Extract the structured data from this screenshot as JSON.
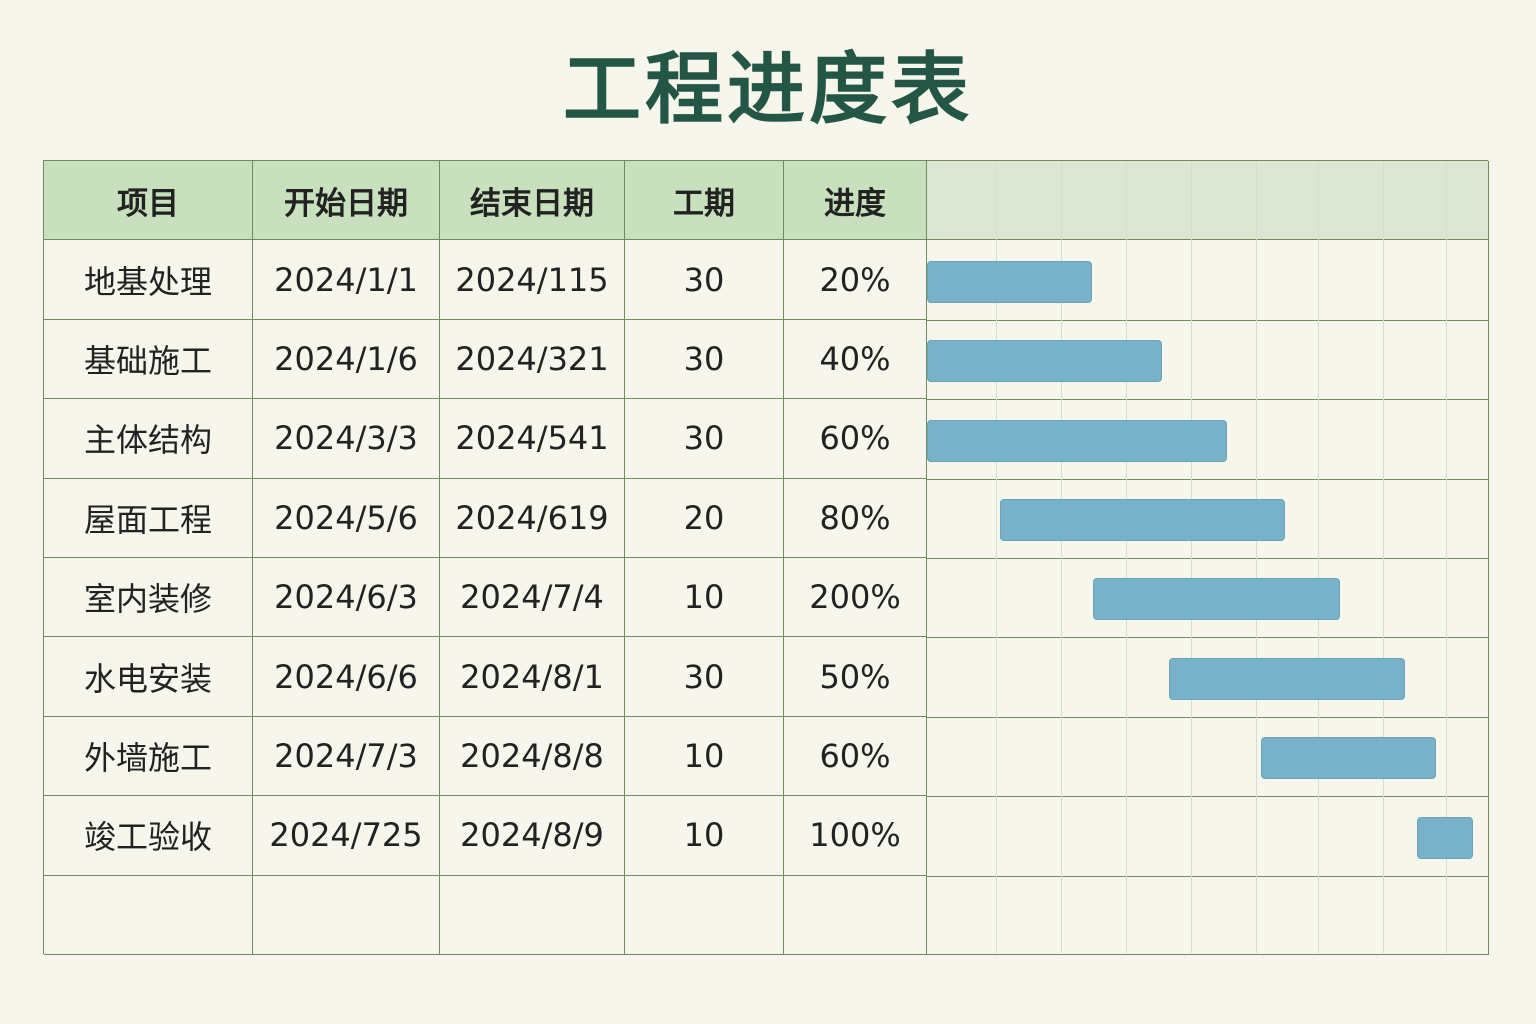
{
  "title": "工程进度表",
  "colors": {
    "title": "#245645",
    "header_bg": "#c8e0bd",
    "grid_line": "#6f8b5f",
    "bar": "#78b2c9",
    "page_bg": "#f7f6ec"
  },
  "table": {
    "headers": [
      "项目",
      "开始日期",
      "结束日期",
      "工期",
      "进度"
    ],
    "rows": [
      {
        "name": "地基处理",
        "start": "2024/1/1",
        "end": "2024/115",
        "duration": "30",
        "progress": "20%"
      },
      {
        "name": "基础施工",
        "start": "2024/1/6",
        "end": "2024/321",
        "duration": "30",
        "progress": "40%"
      },
      {
        "name": "主体结构",
        "start": "2024/3/3",
        "end": "2024/541",
        "duration": "30",
        "progress": "60%"
      },
      {
        "name": "屋面工程",
        "start": "2024/5/6",
        "end": "2024/619",
        "duration": "20",
        "progress": "80%"
      },
      {
        "name": "室内装修",
        "start": "2024/6/3",
        "end": "2024/7/4",
        "duration": "10",
        "progress": "200%"
      },
      {
        "name": "水电安装",
        "start": "2024/6/6",
        "end": "2024/8/1",
        "duration": "30",
        "progress": "50%"
      },
      {
        "name": "外墙施工",
        "start": "2024/7/3",
        "end": "2024/8/8",
        "duration": "10",
        "progress": "60%"
      },
      {
        "name": "竣工验收",
        "start": "2024/725",
        "end": "2024/8/9",
        "duration": "10",
        "progress": "100%"
      }
    ]
  }
}
